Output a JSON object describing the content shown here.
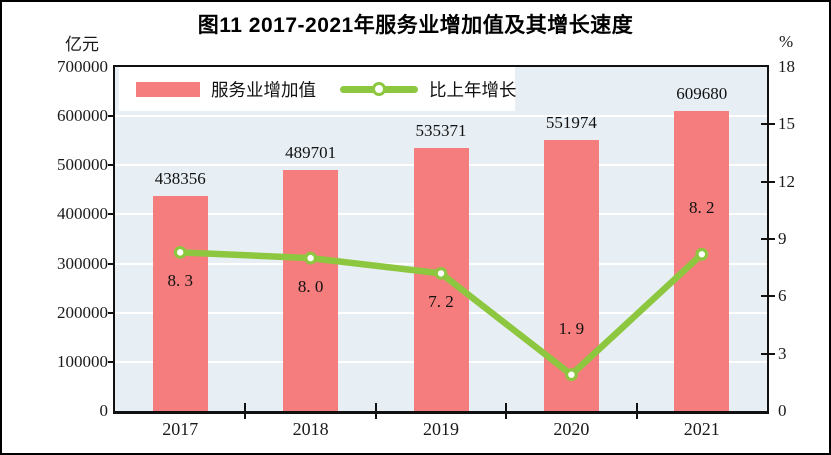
{
  "figure": {
    "title": "图11  2017-2021年服务业增加值及其增长速度",
    "left_axis_unit": "亿元",
    "right_axis_unit": "%"
  },
  "legend": {
    "bar_label": "服务业增加值",
    "line_label": "比上年增长"
  },
  "chart_data": {
    "type": "bar",
    "subtype": "bar+line-dual-axis",
    "title": "图11  2017-2021年服务业增加值及其增长速度",
    "categories": [
      "2017",
      "2018",
      "2019",
      "2020",
      "2021"
    ],
    "series": [
      {
        "name": "服务业增加值",
        "type": "bar",
        "axis": "left",
        "unit": "亿元",
        "values": [
          438356,
          489701,
          535371,
          551974,
          609680
        ],
        "labels": [
          "438356",
          "489701",
          "535371",
          "551974",
          "609680"
        ]
      },
      {
        "name": "比上年增长",
        "type": "line",
        "axis": "right",
        "unit": "%",
        "values": [
          8.3,
          8.0,
          7.2,
          1.9,
          8.2
        ],
        "labels": [
          "8. 3",
          "8. 0",
          "7. 2",
          "1. 9",
          "8. 2"
        ],
        "label_positions": [
          "below",
          "below",
          "below",
          "above",
          "above"
        ]
      }
    ],
    "left_axis": {
      "min": 0,
      "max": 700000,
      "step": 100000,
      "tick_labels": [
        "0",
        "100000",
        "200000",
        "300000",
        "400000",
        "500000",
        "600000",
        "700000"
      ]
    },
    "right_axis": {
      "min": 0,
      "max": 18,
      "step": 3,
      "tick_labels": [
        "0",
        "3",
        "6",
        "9",
        "12",
        "15",
        "18"
      ]
    },
    "grid": "horizontal white lines at each left-axis step",
    "legend_position": "top-left"
  },
  "colors": {
    "bar": "#F57D7D",
    "line": "#8DC740",
    "marker_fill": "#FFFFFF",
    "plot_background": "#E7EFF5",
    "gridline": "#FFFFFF",
    "axis": "#111111",
    "text": "#1A1A1A"
  }
}
